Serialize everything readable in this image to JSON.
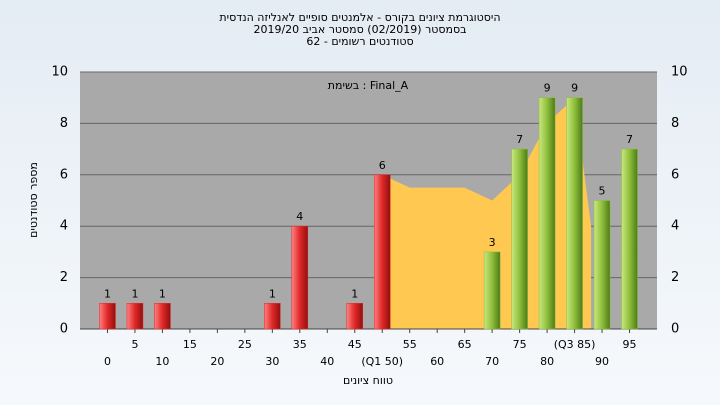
{
  "chart_data": {
    "type": "histogram",
    "title": [
      "היסטוגרמת ציונים בקורס - אלמנטים סופיים לאנליזה הנדסית",
      "בסמסטר  (02/2019)  סמסטר אביב 2019/20",
      "סטודנטים רשומים - 62"
    ],
    "annotation": "בשימת : Final_A",
    "x_label": "טווח ציונים",
    "y_label": "מספר סטודנטים",
    "series": [
      {
        "color": "#e02828",
        "x": [
          0,
          5,
          10,
          30,
          35,
          45,
          50
        ],
        "values": [
          1,
          1,
          1,
          1,
          4,
          1,
          6
        ]
      },
      {
        "color": "#8fbf3a",
        "x": [
          70,
          75,
          80,
          85,
          90,
          95
        ],
        "values": [
          3,
          7,
          9,
          9,
          5,
          7
        ]
      }
    ],
    "area": {
      "color": "#ffc850",
      "x": [
        50,
        55,
        60,
        65,
        70,
        75,
        80,
        85,
        88
      ],
      "values": [
        6,
        5.5,
        5.5,
        5.5,
        5,
        6,
        8,
        9,
        4
      ]
    },
    "xlim": [
      -5,
      100
    ],
    "xticks": [
      0,
      5,
      10,
      15,
      20,
      25,
      30,
      35,
      40,
      45,
      {
        "value": 50,
        "label": "(Q1 50)"
      },
      55,
      60,
      65,
      70,
      75,
      80,
      {
        "value": 85,
        "label": "(Q3 85)"
      },
      90,
      95
    ],
    "ylim": [
      0,
      10
    ],
    "yticks": [
      0,
      2,
      4,
      6,
      8,
      10
    ],
    "grid": true
  }
}
